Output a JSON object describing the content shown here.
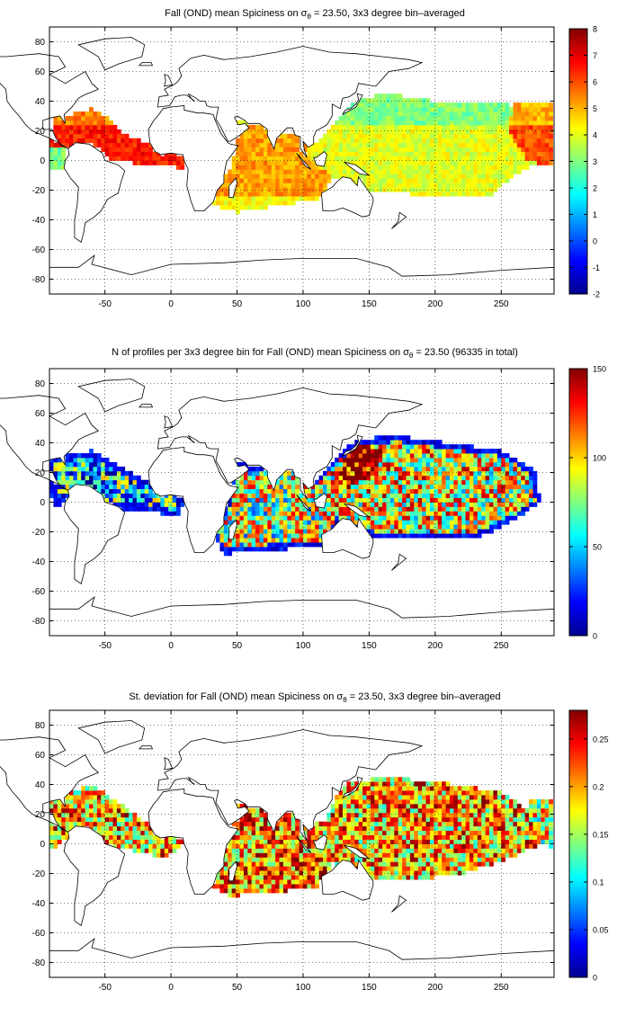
{
  "panels": [
    {
      "title": "Fall (OND) mean Spiciness on",
      "title_sigma": "σ",
      "title_sub": "θ",
      "title_suffix": " = 23.50, 3x3 degree bin–averaged",
      "colorbar_ticks": [
        "-2",
        "-1",
        "0",
        "1",
        "2",
        "3",
        "4",
        "5",
        "6",
        "7",
        "8"
      ],
      "colorbar_range": [
        -2,
        8
      ],
      "colormap": "jet"
    },
    {
      "title": "N of profiles per 3x3 degree bin for Fall (OND) mean Spiciness on",
      "title_sigma": "σ",
      "title_sub": "θ",
      "title_suffix": " = 23.50 (96335 in total)",
      "colorbar_ticks": [
        "0",
        "50",
        "100",
        "150"
      ],
      "colorbar_range": [
        0,
        150
      ],
      "colormap": "jet"
    },
    {
      "title": "St. deviation for Fall (OND) mean Spiciness on",
      "title_sigma": "σ",
      "title_sub": "θ",
      "title_suffix": " = 23.50, 3x3 degree bin–averaged",
      "colorbar_ticks": [
        "0",
        "0.05",
        "0.1",
        "0.15",
        "0.2",
        "0.25"
      ],
      "colorbar_range": [
        0,
        0.28
      ],
      "colormap": "jet"
    }
  ],
  "map_axes": {
    "x_ticks": [
      "-50",
      "0",
      "50",
      "100",
      "150",
      "200",
      "250"
    ],
    "x_tick_values": [
      -50,
      0,
      50,
      100,
      150,
      200,
      250
    ],
    "y_ticks": [
      "80",
      "60",
      "40",
      "20",
      "0",
      "-20",
      "-40",
      "-60",
      "-80"
    ],
    "y_tick_values": [
      80,
      60,
      40,
      20,
      0,
      -20,
      -40,
      -60,
      -80
    ],
    "x_range": [
      -92,
      290
    ],
    "y_range": [
      -90,
      90
    ],
    "grid": "dotted"
  },
  "colors": {
    "land_outline": "#000000",
    "background": "#ffffff"
  }
}
